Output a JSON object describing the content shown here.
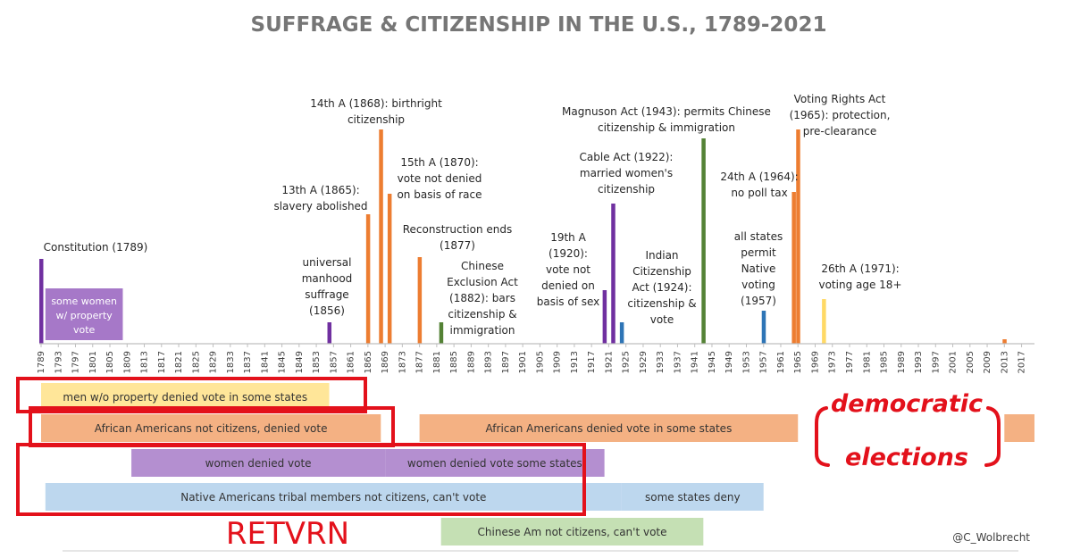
{
  "chart_data": {
    "type": "bar",
    "title": "SUFFRAGE & CITIZENSHIP IN THE U.S., 1789-2021",
    "xlim": [
      1789,
      2020
    ],
    "tick_labels": [
      "1789",
      "1793",
      "1797",
      "1801",
      "1805",
      "1809",
      "1813",
      "1817",
      "1821",
      "1825",
      "1829",
      "1833",
      "1837",
      "1841",
      "1845",
      "1849",
      "1853",
      "1857",
      "1861",
      "1865",
      "1869",
      "1873",
      "1877",
      "1881",
      "1885",
      "1889",
      "1893",
      "1897",
      "1901",
      "1905",
      "1909",
      "1913",
      "1917",
      "1921",
      "1925",
      "1929",
      "1933",
      "1937",
      "1941",
      "1945",
      "1949",
      "1953",
      "1957",
      "1961",
      "1965",
      "1969",
      "1973",
      "1977",
      "1981",
      "1985",
      "1989",
      "1993",
      "1997",
      "2001",
      "2005",
      "2009",
      "2013",
      "2017"
    ],
    "events": [
      {
        "year": 1789,
        "height": 95,
        "color": "#7030a0",
        "label": [
          "Constitution (1789)"
        ]
      },
      {
        "year": 1856,
        "height": 24,
        "color": "#7030a0",
        "label": [
          "universal",
          "manhood",
          "suffrage",
          "(1856)"
        ]
      },
      {
        "year": 1865,
        "height": 145,
        "color": "#ed7d31",
        "label": [
          "13th A (1865):",
          "slavery abolished"
        ]
      },
      {
        "year": 1868,
        "height": 240,
        "color": "#ed7d31",
        "label": [
          "14th A (1868): birthright",
          "citizenship"
        ]
      },
      {
        "year": 1870,
        "height": 168,
        "color": "#ed7d31",
        "label": [
          "15th A (1870):",
          "vote not denied",
          "on basis of race"
        ]
      },
      {
        "year": 1877,
        "height": 97,
        "color": "#ed7d31",
        "label": [
          "Reconstruction ends",
          "(1877)"
        ]
      },
      {
        "year": 1882,
        "height": 24,
        "color": "#548235",
        "label": [
          "Chinese",
          "Exclusion Act",
          "(1882): bars",
          "citizenship &",
          "immigration"
        ]
      },
      {
        "year": 1920,
        "height": 60,
        "color": "#7030a0",
        "label": [
          "19th A",
          "(1920):",
          "vote not",
          "denied on",
          "basis of sex"
        ]
      },
      {
        "year": 1922,
        "height": 157,
        "color": "#7030a0",
        "label": [
          "Cable Act (1922):",
          "married women's",
          "citizenship"
        ]
      },
      {
        "year": 1924,
        "height": 24,
        "color": "#2e75b6",
        "label": [
          "Indian",
          "Citizenship",
          "Act (1924):",
          "citizenship &",
          "vote"
        ]
      },
      {
        "year": 1943,
        "height": 230,
        "color": "#548235",
        "label": [
          "Magnuson Act (1943): permits Chinese",
          "citizenship & immigration"
        ]
      },
      {
        "year": 1957,
        "height": 37,
        "color": "#2e75b6",
        "label": [
          "all states",
          "permit",
          "Native",
          "voting",
          "(1957)"
        ]
      },
      {
        "year": 1964,
        "height": 170,
        "color": "#ed7d31",
        "label": [
          "24th A (1964):",
          "no poll tax"
        ]
      },
      {
        "year": 1965,
        "height": 240,
        "color": "#ed7d31",
        "label": [
          "Voting Rights Act",
          "(1965): protection,",
          "pre-clearance"
        ]
      },
      {
        "year": 1971,
        "height": 50,
        "color": "#ffd966",
        "label": [
          "26th A (1971):",
          "voting age 18+"
        ]
      },
      {
        "year": 2013,
        "height": 5,
        "color": "#ed7d31",
        "label": []
      }
    ],
    "property_box": {
      "start": 1790,
      "end": 1808,
      "color": "#a678c8",
      "label": [
        "some women",
        "w/ property",
        "vote"
      ]
    },
    "periods": [
      {
        "label": "men  w/o property denied vote in some states",
        "start": 1789,
        "end": 1856,
        "row": 0,
        "color": "#ffe699"
      },
      {
        "label": "African Americans not citizens, denied vote",
        "start": 1789,
        "end": 1868,
        "row": 1,
        "color": "#f4b183"
      },
      {
        "label": "African Americans denied vote in some states",
        "start": 1877,
        "end": 1965,
        "row": 1,
        "color": "#f4b183"
      },
      {
        "label": "",
        "start": 2013,
        "end": 2020,
        "row": 1,
        "color": "#f4b183"
      },
      {
        "label": "women denied vote",
        "start": 1810,
        "end": 1869,
        "row": 2,
        "color": "#b48fd0"
      },
      {
        "label": "women denied vote some states",
        "start": 1869,
        "end": 1920,
        "row": 2,
        "color": "#b48fd0"
      },
      {
        "label": "Native Americans tribal members not citizens, can't vote",
        "start": 1790,
        "end": 1924,
        "row": 3,
        "color": "#bdd7ee"
      },
      {
        "label": "some states deny",
        "start": 1924,
        "end": 1957,
        "row": 3,
        "color": "#bdd7ee"
      },
      {
        "label": "Chinese Am not citizens, can't vote",
        "start": 1882,
        "end": 1943,
        "row": 4,
        "color": "#c5e0b4"
      }
    ]
  },
  "annotation": {
    "retvrn": "RETVRN",
    "democratic_1": "democratic",
    "democratic_2": "elections",
    "credit": "@C_Wolbrecht"
  },
  "colors": {
    "red": "#e3111b",
    "axis": "#bfbfbf",
    "text": "#404040",
    "title": "#767676"
  }
}
